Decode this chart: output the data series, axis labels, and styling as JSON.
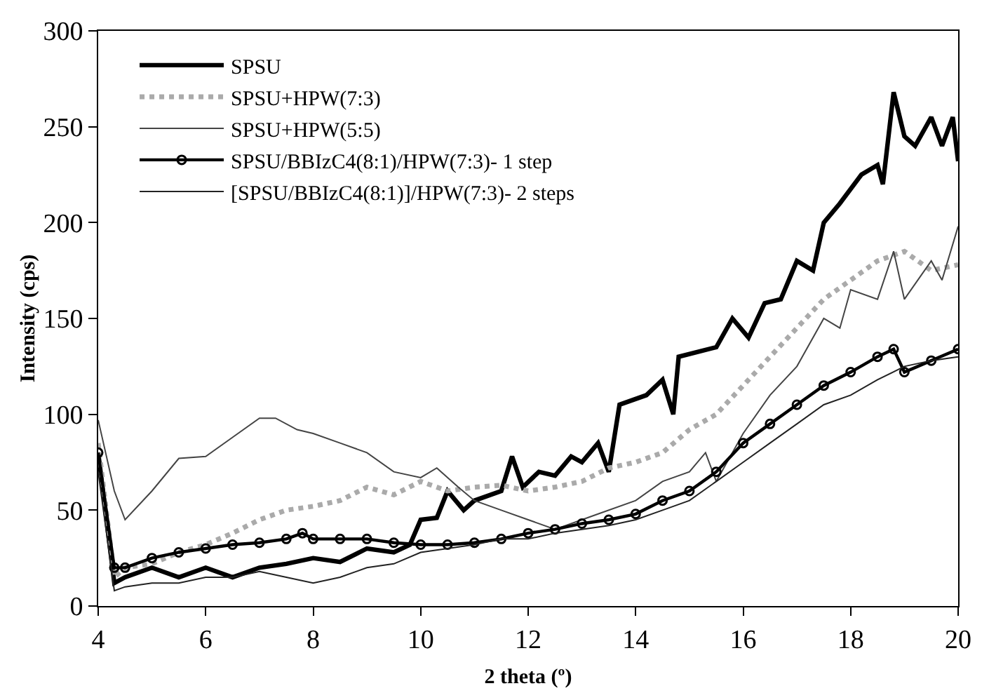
{
  "chart_data": {
    "type": "line",
    "xlabel": "2 theta (º)",
    "ylabel": "Intensity (cps)",
    "xlim": [
      4,
      20
    ],
    "xticks": [
      4,
      6,
      8,
      10,
      12,
      14,
      16,
      18,
      20
    ],
    "ylim": [
      0,
      300
    ],
    "yticks": [
      0,
      50,
      100,
      150,
      200,
      250,
      300
    ],
    "grid": false,
    "legend": "top left",
    "series": [
      {
        "name": "SPSU",
        "color": "#000000",
        "line_style": "solid",
        "marker": "none",
        "x": [
          4,
          4.3,
          4.5,
          5,
          5.5,
          6,
          6.5,
          7,
          7.5,
          8,
          8.5,
          9,
          9.5,
          9.8,
          10,
          10.3,
          10.5,
          10.8,
          11,
          11.5,
          11.7,
          11.9,
          12.2,
          12.5,
          12.8,
          13,
          13.3,
          13.5,
          13.7,
          14.2,
          14.5,
          14.7,
          14.8,
          15.5,
          15.8,
          16.1,
          16.4,
          16.7,
          17,
          17.3,
          17.5,
          17.8,
          18.2,
          18.5,
          18.6,
          18.8,
          19,
          19.2,
          19.5,
          19.7,
          19.9,
          20
        ],
        "values": [
          80,
          12,
          15,
          20,
          15,
          20,
          15,
          20,
          22,
          25,
          23,
          30,
          28,
          32,
          45,
          46,
          60,
          50,
          55,
          60,
          78,
          62,
          70,
          68,
          78,
          75,
          85,
          70,
          105,
          110,
          118,
          100,
          130,
          135,
          150,
          140,
          158,
          160,
          180,
          175,
          200,
          210,
          225,
          230,
          220,
          268,
          245,
          240,
          255,
          240,
          255,
          232
        ]
      },
      {
        "name": "SPSU+HPW(7:3)",
        "color": "#aaaaaa",
        "line_style": "dotted",
        "marker": "none",
        "x": [
          4,
          4.3,
          4.5,
          5,
          5.5,
          6,
          6.5,
          7,
          7.5,
          8,
          8.5,
          9,
          9.5,
          10,
          10.5,
          11,
          11.5,
          12,
          12.5,
          13,
          13.5,
          14,
          14.5,
          15,
          15.5,
          16,
          16.5,
          17,
          17.5,
          18,
          18.5,
          19,
          19.5,
          20
        ],
        "values": [
          85,
          15,
          20,
          22,
          28,
          32,
          38,
          45,
          50,
          52,
          55,
          62,
          58,
          65,
          60,
          62,
          63,
          60,
          62,
          65,
          72,
          75,
          80,
          92,
          100,
          115,
          130,
          145,
          160,
          170,
          180,
          185,
          175,
          178
        ]
      },
      {
        "name": "SPSU+HPW(5:5)",
        "color": "#444444",
        "line_style": "solid",
        "marker": "none",
        "x": [
          4,
          4.3,
          4.5,
          5,
          5.5,
          6,
          6.5,
          7,
          7.3,
          7.7,
          8,
          8.5,
          9,
          9.5,
          10,
          10.3,
          10.7,
          11,
          11.5,
          12,
          12.5,
          13,
          13.3,
          14,
          14.5,
          15,
          15.3,
          15.5,
          16,
          16.5,
          17,
          17.5,
          17.8,
          18,
          18.5,
          18.8,
          19,
          19.5,
          19.7,
          20
        ],
        "values": [
          97,
          60,
          45,
          60,
          77,
          78,
          88,
          98,
          98,
          92,
          90,
          85,
          80,
          70,
          67,
          72,
          62,
          55,
          50,
          45,
          40,
          45,
          48,
          55,
          65,
          70,
          80,
          65,
          90,
          110,
          125,
          150,
          145,
          165,
          160,
          185,
          160,
          180,
          170,
          198
        ]
      },
      {
        "name": "SPSU/BBIzC4(8:1)/HPW(7:3)- 1 step",
        "color": "#000000",
        "line_style": "solid",
        "marker": "circle",
        "x": [
          4,
          4.3,
          4.5,
          5,
          5.5,
          6,
          6.5,
          7,
          7.5,
          7.8,
          8,
          8.5,
          9,
          9.5,
          10,
          10.5,
          11,
          11.5,
          12,
          12.5,
          13,
          13.5,
          14,
          14.5,
          15,
          15.5,
          16,
          16.5,
          17,
          17.5,
          18,
          18.5,
          18.8,
          19,
          19.5,
          20
        ],
        "values": [
          80,
          20,
          20,
          25,
          28,
          30,
          32,
          33,
          35,
          38,
          35,
          35,
          35,
          33,
          32,
          32,
          33,
          35,
          38,
          40,
          43,
          45,
          48,
          55,
          60,
          70,
          85,
          95,
          105,
          115,
          122,
          130,
          134,
          122,
          128,
          134
        ]
      },
      {
        "name": "[SPSU/BBIzC4(8:1)]/HPW(7:3)- 2 steps",
        "color": "#222222",
        "line_style": "solid",
        "marker": "none",
        "x": [
          4,
          4.3,
          4.5,
          5,
          5.5,
          6,
          6.5,
          7,
          7.5,
          8,
          8.5,
          9,
          9.5,
          10,
          10.5,
          11,
          11.5,
          12,
          12.5,
          13,
          13.5,
          14,
          14.5,
          15,
          15.5,
          16,
          16.5,
          17,
          17.5,
          18,
          18.5,
          19,
          19.5,
          20
        ],
        "values": [
          70,
          8,
          10,
          12,
          12,
          15,
          15,
          18,
          15,
          12,
          15,
          20,
          22,
          28,
          30,
          32,
          35,
          35,
          38,
          40,
          42,
          45,
          50,
          55,
          65,
          75,
          85,
          95,
          105,
          110,
          118,
          125,
          128,
          130
        ]
      }
    ]
  }
}
